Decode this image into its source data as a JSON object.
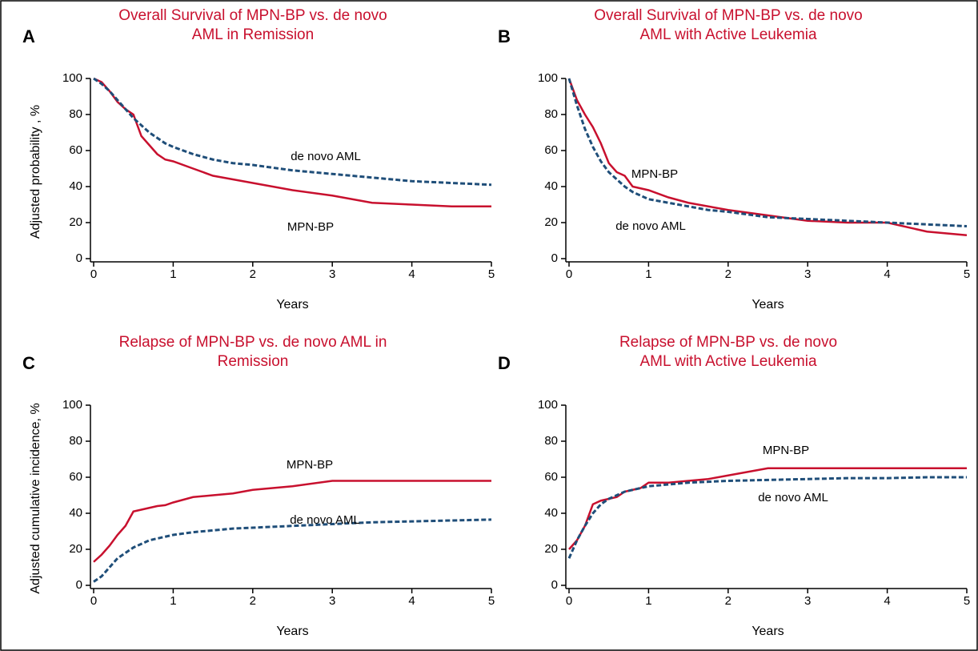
{
  "chart_data": [
    {
      "type": "line",
      "panel": "A",
      "title": "Overall Survival of MPN-BP vs. de novo AML in Remission",
      "xlabel": "Years",
      "ylabel": "Adjusted probability , %",
      "x": [
        0,
        0.1,
        0.2,
        0.3,
        0.4,
        0.5,
        0.6,
        0.7,
        0.8,
        0.9,
        1,
        1.25,
        1.5,
        1.75,
        2,
        2.5,
        3,
        3.5,
        4,
        4.5,
        5
      ],
      "series": [
        {
          "name": "MPN-BP",
          "color": "#c8102e",
          "dash": false,
          "values": [
            100,
            98,
            93,
            87,
            83,
            80,
            68,
            63,
            58,
            55,
            54,
            50,
            46,
            44,
            42,
            38,
            35,
            31,
            30,
            29,
            29
          ]
        },
        {
          "name": "de novo AML",
          "color": "#1f4e79",
          "dash": true,
          "values": [
            100,
            97,
            93,
            88,
            83,
            78,
            74,
            70,
            67,
            64,
            62,
            58,
            55,
            53,
            52,
            49,
            47,
            45,
            43,
            42,
            41
          ]
        }
      ],
      "xlim": [
        0,
        5
      ],
      "xticks": [
        0,
        1,
        2,
        3,
        4,
        5
      ],
      "ylim": [
        0,
        100
      ],
      "yticks": [
        0,
        20,
        40,
        60,
        80,
        100
      ]
    },
    {
      "type": "line",
      "panel": "B",
      "title": "Overall Survival of MPN-BP vs. de novo AML with Active Leukemia",
      "xlabel": "Years",
      "x": [
        0,
        0.1,
        0.2,
        0.3,
        0.4,
        0.5,
        0.6,
        0.7,
        0.8,
        0.9,
        1,
        1.25,
        1.5,
        1.75,
        2,
        2.5,
        3,
        3.5,
        4,
        4.5,
        5
      ],
      "series": [
        {
          "name": "MPN-BP",
          "color": "#c8102e",
          "dash": false,
          "values": [
            100,
            88,
            80,
            73,
            64,
            53,
            48,
            46,
            40,
            39,
            38,
            34,
            31,
            29,
            27,
            24,
            21,
            20,
            20,
            15,
            13
          ]
        },
        {
          "name": "de novo AML",
          "color": "#1f4e79",
          "dash": true,
          "values": [
            100,
            85,
            72,
            62,
            54,
            48,
            44,
            40,
            37,
            35,
            33,
            31,
            29,
            27,
            26,
            23,
            22,
            21,
            20,
            19,
            18
          ]
        }
      ],
      "xlim": [
        0,
        5
      ],
      "xticks": [
        0,
        1,
        2,
        3,
        4,
        5
      ],
      "ylim": [
        0,
        100
      ],
      "yticks": [
        0,
        20,
        40,
        60,
        80,
        100
      ]
    },
    {
      "type": "line",
      "panel": "C",
      "title": "Relapse of MPN-BP vs. de novo AML in Remission",
      "xlabel": "Years",
      "ylabel": "Adjusted cumulative incidence, %",
      "x": [
        0,
        0.1,
        0.2,
        0.3,
        0.4,
        0.5,
        0.6,
        0.7,
        0.8,
        0.9,
        1,
        1.25,
        1.5,
        1.75,
        2,
        2.5,
        3,
        3.5,
        4,
        4.5,
        5
      ],
      "series": [
        {
          "name": "MPN-BP",
          "color": "#c8102e",
          "dash": false,
          "values": [
            13,
            17,
            22,
            28,
            33,
            41,
            42,
            43,
            44,
            44.5,
            46,
            49,
            50,
            51,
            53,
            55,
            58,
            58,
            58,
            58,
            58
          ]
        },
        {
          "name": "de novo AML",
          "color": "#1f4e79",
          "dash": true,
          "values": [
            2,
            5,
            10,
            15,
            18,
            21,
            23,
            25,
            26,
            27,
            28,
            29.5,
            30.5,
            31.5,
            32,
            33,
            34,
            35,
            35.5,
            36,
            36.5
          ]
        }
      ],
      "xlim": [
        0,
        5
      ],
      "xticks": [
        0,
        1,
        2,
        3,
        4,
        5
      ],
      "ylim": [
        0,
        100
      ],
      "yticks": [
        0,
        20,
        40,
        60,
        80,
        100
      ]
    },
    {
      "type": "line",
      "panel": "D",
      "title": "Relapse of MPN-BP vs. de novo AML with Active Leukemia",
      "xlabel": "Years",
      "x": [
        0,
        0.1,
        0.2,
        0.3,
        0.4,
        0.5,
        0.6,
        0.7,
        0.8,
        0.9,
        1,
        1.25,
        1.5,
        1.75,
        2,
        2.5,
        3,
        3.5,
        4,
        4.5,
        5
      ],
      "series": [
        {
          "name": "MPN-BP",
          "color": "#c8102e",
          "dash": false,
          "values": [
            20,
            25,
            33,
            45,
            47,
            48,
            49,
            52,
            53,
            54,
            57,
            57,
            58,
            59,
            61,
            65,
            65,
            65,
            65,
            65,
            65
          ]
        },
        {
          "name": "de novo AML",
          "color": "#1f4e79",
          "dash": true,
          "values": [
            15,
            25,
            33,
            40,
            45,
            48,
            50,
            52,
            53,
            54,
            55,
            56,
            57,
            57.5,
            58,
            58.5,
            59,
            59.5,
            59.5,
            60,
            60
          ]
        }
      ],
      "xlim": [
        0,
        5
      ],
      "xticks": [
        0,
        1,
        2,
        3,
        4,
        5
      ],
      "ylim": [
        0,
        100
      ],
      "yticks": [
        0,
        20,
        40,
        60,
        80,
        100
      ]
    }
  ]
}
